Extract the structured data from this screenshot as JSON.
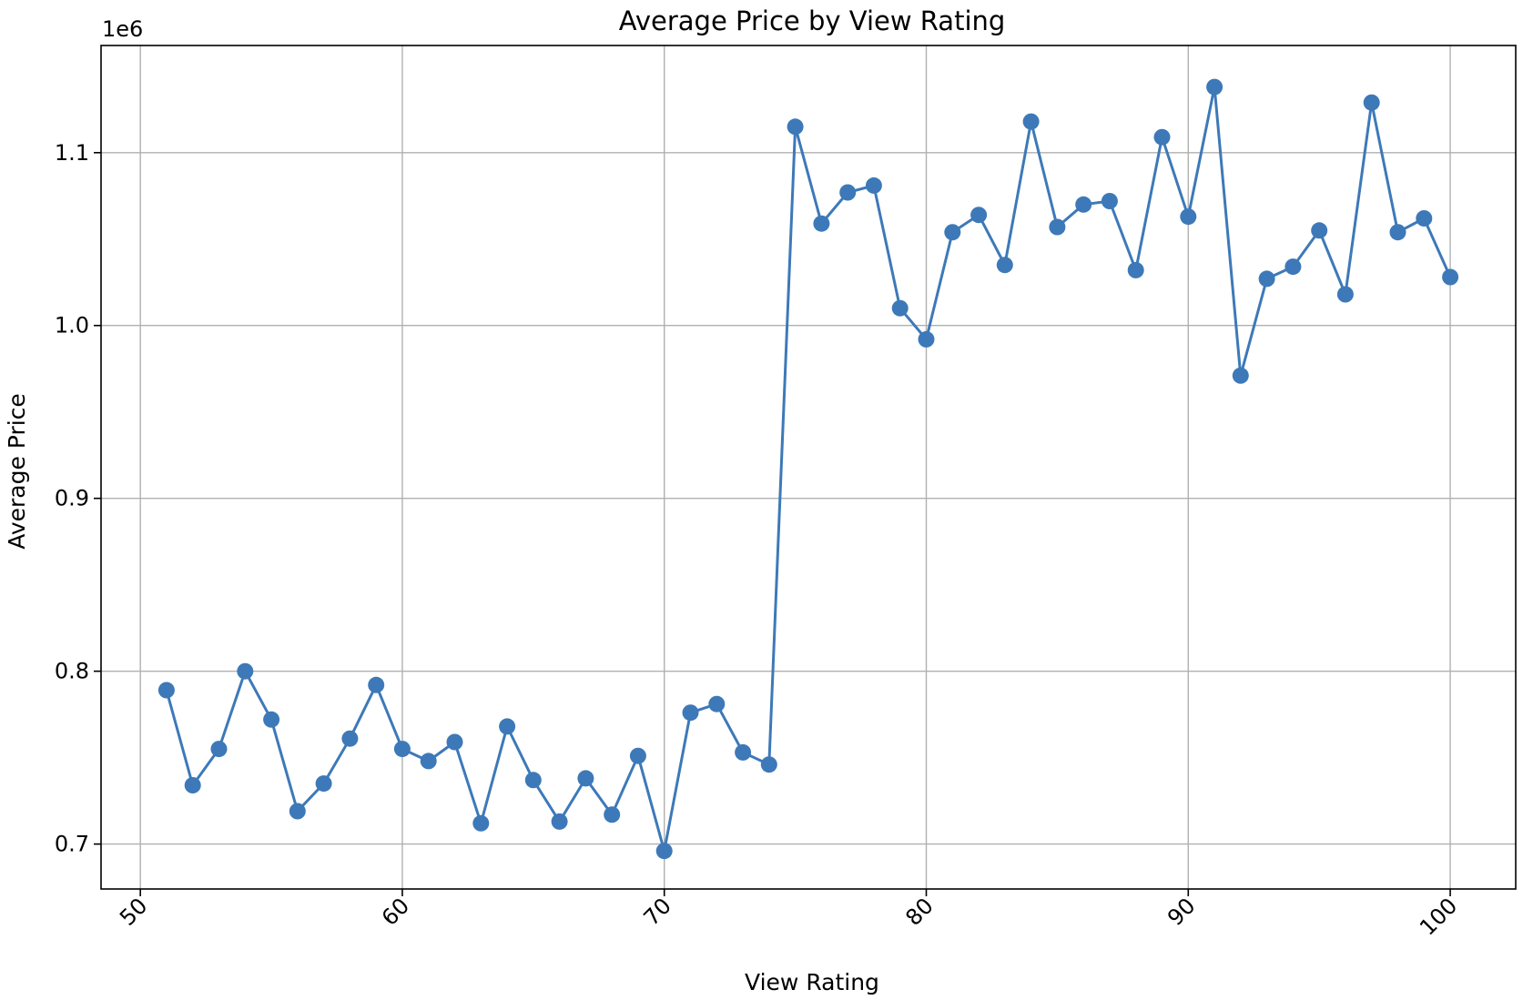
{
  "chart_data": {
    "type": "line",
    "title": "Average Price by View Rating",
    "xlabel": "View Rating",
    "ylabel": "Average Price",
    "y_offset_label": "1e6",
    "xlim": [
      48.5,
      102.5
    ],
    "ylim": [
      0.674,
      1.162
    ],
    "x_ticks": [
      50,
      60,
      70,
      80,
      90,
      100
    ],
    "x_tick_labels": [
      "50",
      "60",
      "70",
      "80",
      "90",
      "100"
    ],
    "y_ticks": [
      0.7,
      0.8,
      0.9,
      1.0,
      1.1
    ],
    "y_tick_labels": [
      "0.7",
      "0.8",
      "0.9",
      "1.0",
      "1.1"
    ],
    "x_tick_rotation": -45,
    "grid": true,
    "line_color": "#3d79b8",
    "series": [
      {
        "x": [
          51,
          52,
          53,
          54,
          55,
          56,
          57,
          58,
          59,
          60,
          61,
          62,
          63,
          64,
          65,
          66,
          67,
          68,
          69,
          70,
          71,
          72,
          73,
          74,
          75,
          76,
          77,
          78,
          79,
          80,
          81,
          82,
          83,
          84,
          85,
          86,
          87,
          88,
          89,
          90,
          91,
          92,
          93,
          94,
          95,
          96,
          97,
          98,
          99,
          100
        ],
        "y": [
          0.789,
          0.734,
          0.755,
          0.8,
          0.772,
          0.719,
          0.735,
          0.761,
          0.792,
          0.755,
          0.748,
          0.759,
          0.712,
          0.768,
          0.737,
          0.713,
          0.738,
          0.717,
          0.751,
          0.696,
          0.776,
          0.781,
          0.753,
          0.746,
          1.115,
          1.059,
          1.077,
          1.081,
          1.01,
          0.992,
          1.054,
          1.064,
          1.035,
          1.118,
          1.057,
          1.07,
          1.072,
          1.032,
          1.109,
          1.063,
          1.138,
          0.971,
          1.027,
          1.034,
          1.055,
          1.018,
          1.129,
          1.054,
          1.062,
          1.028
        ]
      }
    ]
  }
}
